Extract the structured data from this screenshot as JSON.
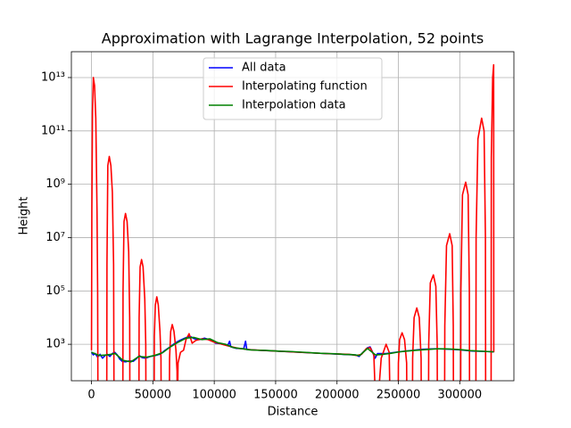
{
  "chart_data": {
    "type": "line",
    "title": "Approximation with Lagrange Interpolation, 52 points",
    "xlabel": "Distance",
    "ylabel": "Height",
    "yscale": "log",
    "grid": true,
    "legend": "upper center",
    "xlim": [
      -16390,
      344090
    ],
    "ylim": [
      43,
      93000000000000
    ],
    "xticks": [
      0,
      50000,
      100000,
      150000,
      200000,
      250000,
      300000
    ],
    "yticks": [
      {
        "value": 1000,
        "label": "10³"
      },
      {
        "value": 100000,
        "label": "10⁵"
      },
      {
        "value": 10000000,
        "label": "10⁷"
      },
      {
        "value": 1000000000,
        "label": "10⁹"
      },
      {
        "value": 100000000000,
        "label": "10¹¹"
      },
      {
        "value": 10000000000000,
        "label": "10¹³"
      }
    ],
    "series": [
      {
        "name": "All data",
        "color": "#0000ff",
        "x": [
          0,
          1500,
          3000,
          5000,
          7000,
          9000,
          11000,
          13000,
          15000,
          17000,
          19000,
          21000,
          23000,
          25000,
          28000,
          31000,
          34000,
          37000,
          39000,
          41000,
          44000,
          48000,
          52000,
          56000,
          60000,
          64000,
          68000,
          72000,
          76000,
          80000,
          84000,
          88000,
          92000,
          96000,
          99000,
          101000,
          105000,
          109000,
          111000,
          112500,
          113500,
          118000,
          124000,
          125500,
          126500,
          135000,
          150000,
          170000,
          190000,
          205000,
          215000,
          218000,
          222000,
          225000,
          227000,
          229000,
          231000,
          233000,
          240000,
          250000,
          260000,
          270000,
          280000,
          290000,
          300000,
          310000,
          320000,
          327700
        ],
        "values": [
          500,
          400,
          450,
          330,
          420,
          300,
          380,
          420,
          350,
          450,
          500,
          400,
          280,
          230,
          220,
          240,
          230,
          300,
          380,
          320,
          300,
          350,
          380,
          430,
          600,
          800,
          1100,
          1400,
          1700,
          2000,
          1600,
          1500,
          1700,
          1500,
          1400,
          1100,
          1050,
          950,
          900,
          1300,
          800,
          700,
          680,
          1300,
          640,
          600,
          560,
          500,
          450,
          420,
          400,
          350,
          550,
          750,
          800,
          500,
          300,
          450,
          450,
          520,
          580,
          650,
          680,
          660,
          620,
          560,
          540,
          520
        ]
      },
      {
        "name": "Interpolating function",
        "color": "#ff0000",
        "x": [
          0,
          300,
          800,
          1500,
          2500,
          3500,
          4500,
          5000,
          5300,
          12400,
          12600,
          13300,
          14500,
          15800,
          17000,
          18000,
          18400,
          25500,
          25700,
          26500,
          27700,
          29000,
          30300,
          31100,
          31300,
          38600,
          38800,
          39600,
          40800,
          42000,
          43400,
          44200,
          44400,
          51000,
          51200,
          52000,
          53200,
          54400,
          55800,
          56600,
          56800,
          63400,
          63600,
          64500,
          65800,
          67200,
          68800,
          69700,
          69900,
          70500,
          72500,
          75000,
          77000,
          79500,
          82000,
          85000,
          90000,
          95000,
          100000,
          110000,
          120000,
          130000,
          150000,
          170000,
          190000,
          210000,
          216000,
          220000,
          224000,
          227000,
          230000,
          232000,
          236000,
          240000,
          242500,
          243500,
          249800,
          250000,
          251000,
          253000,
          255000,
          256700,
          257000,
          261400,
          261600,
          262800,
          265000,
          267000,
          268500,
          268700,
          274500,
          274700,
          276000,
          278500,
          280500,
          281600,
          281800,
          287600,
          287800,
          289200,
          291800,
          293800,
          294700,
          294900,
          300700,
          300900,
          302200,
          304800,
          306800,
          307800,
          308000,
          313100,
          313300,
          314800,
          317800,
          319800,
          320900,
          321100,
          325500,
          325700,
          326800,
          327600,
          327700
        ],
        "values": [
          600,
          100000000,
          500000000000,
          10000000000000,
          5000000000000,
          300000000000,
          100000000,
          100000,
          1,
          1,
          1000000,
          5000000000,
          11000000000,
          5000000000,
          500000000,
          1000000,
          1,
          1,
          100000,
          40000000,
          80000000,
          40000000,
          3000000,
          10000,
          1,
          1,
          10000,
          800000,
          1500000,
          800000,
          50000,
          1000,
          1,
          1,
          2000,
          30000,
          60000,
          30000,
          3000,
          300,
          1,
          1,
          300,
          3000,
          5500,
          3000,
          600,
          100,
          1,
          200,
          500,
          600,
          1500,
          2500,
          1100,
          1400,
          1600,
          1500,
          1200,
          900,
          700,
          620,
          560,
          500,
          450,
          420,
          380,
          420,
          700,
          750,
          400,
          1,
          300,
          1000,
          500,
          1,
          1,
          200,
          1500,
          2700,
          1500,
          200,
          1,
          1,
          300,
          10000,
          23000,
          10000,
          300,
          1,
          1,
          1000,
          200000,
          400000,
          150000,
          1000,
          1,
          1,
          5000,
          5000000,
          14000000,
          5000000,
          5000,
          1,
          1,
          100000,
          400000000,
          1200000000,
          400000000,
          100000,
          1,
          1,
          10000000,
          50000000000,
          300000000000,
          100000000000,
          10000000,
          1,
          1,
          10000000000,
          10000000000000,
          30000000000000,
          500
        ]
      },
      {
        "name": "Interpolation data",
        "color": "#008000",
        "x": [
          0,
          6425,
          12850,
          19275,
          25700,
          32125,
          38550,
          44975,
          51400,
          57825,
          64250,
          70675,
          77100,
          83525,
          89950,
          96375,
          102800,
          109225,
          115650,
          122075,
          128500,
          134925,
          141350,
          147775,
          154200,
          160625,
          167050,
          173475,
          179900,
          186325,
          192750,
          199175,
          205600,
          212025,
          218450,
          224875,
          231300,
          237725,
          244150,
          250575,
          257000,
          263425,
          269850,
          276275,
          282700,
          289125,
          295550,
          301975,
          308400,
          314825,
          321250,
          327675
        ],
        "values": [
          500,
          380,
          400,
          450,
          250,
          220,
          350,
          330,
          380,
          480,
          800,
          1200,
          1700,
          1800,
          1500,
          1600,
          1150,
          1000,
          750,
          690,
          620,
          600,
          590,
          570,
          550,
          540,
          520,
          500,
          480,
          460,
          450,
          440,
          420,
          410,
          380,
          700,
          400,
          420,
          460,
          520,
          560,
          590,
          620,
          650,
          680,
          670,
          650,
          620,
          580,
          560,
          540,
          520
        ]
      }
    ]
  }
}
